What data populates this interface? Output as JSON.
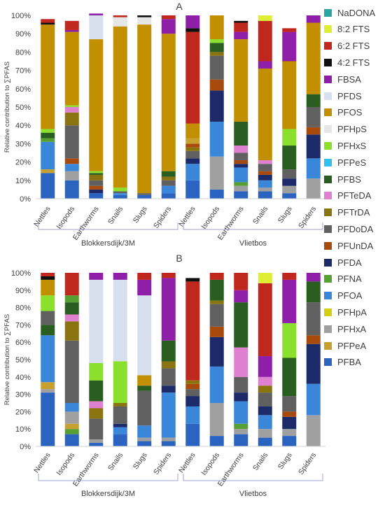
{
  "legend": [
    {
      "name": "NaDONA",
      "color": "#2aa6a0"
    },
    {
      "name": "8:2 FTS",
      "color": "#ddee33"
    },
    {
      "name": "6:2 FTS",
      "color": "#c0281e"
    },
    {
      "name": "4:2 FTS",
      "color": "#101010"
    },
    {
      "name": "FBSA",
      "color": "#8f1ea8"
    },
    {
      "name": "PFDS",
      "color": "#d8e0f0"
    },
    {
      "name": "PFOS",
      "color": "#c28f00"
    },
    {
      "name": "PFHpS",
      "color": "#e6e6e6"
    },
    {
      "name": "PFHxS",
      "color": "#8ae02c"
    },
    {
      "name": "PFPeS",
      "color": "#33c0ee"
    },
    {
      "name": "PFBS",
      "color": "#2a5e20"
    },
    {
      "name": "PFTeDA",
      "color": "#e080d0"
    },
    {
      "name": "PFTrDA",
      "color": "#8a7410"
    },
    {
      "name": "PFDoDA",
      "color": "#606060"
    },
    {
      "name": "PFUnDA",
      "color": "#a84a0c"
    },
    {
      "name": "PFDA",
      "color": "#1c2a6a"
    },
    {
      "name": "PFNA",
      "color": "#55a030"
    },
    {
      "name": "PFOA",
      "color": "#3a86d8"
    },
    {
      "name": "PFHpA",
      "color": "#d4d010"
    },
    {
      "name": "PFHxA",
      "color": "#a0a0a0"
    },
    {
      "name": "PFPeA",
      "color": "#c8a030"
    },
    {
      "name": "PFBA",
      "color": "#2a64c0"
    }
  ],
  "chart_data": [
    {
      "type": "bar",
      "stacked": true,
      "panel_label": "A",
      "ylabel": "Relative contribution to ∑PFAS",
      "yticks": [
        "0%",
        "10%",
        "20%",
        "30%",
        "40%",
        "50%",
        "60%",
        "70%",
        "80%",
        "90%",
        "100%"
      ],
      "ylim": [
        0,
        100
      ],
      "categories": [
        "Nettles",
        "Isopods",
        "Earthworms",
        "Snails",
        "Slugs",
        "Spiders",
        "Nettles",
        "Isopods",
        "Earthworms",
        "Snails",
        "Slugs",
        "Spiders"
      ],
      "groups": [
        {
          "label": "Blokkersdijk/3M",
          "start": 0,
          "end": 5
        },
        {
          "label": "Vlietbos",
          "start": 6,
          "end": 11
        }
      ],
      "stacks": [
        [
          [
            "PFBA",
            14
          ],
          [
            "PFPeA",
            2
          ],
          [
            "PFOA",
            15
          ],
          [
            "PFNA",
            2
          ],
          [
            "PFBS",
            3
          ],
          [
            "PFHxS",
            2
          ],
          [
            "PFOS",
            57
          ],
          [
            "4:2 FTS",
            1
          ],
          [
            "6:2 FTS",
            2
          ]
        ],
        [
          [
            "PFBA",
            10
          ],
          [
            "PFHxA",
            5
          ],
          [
            "PFOA",
            4
          ],
          [
            "PFUnDA",
            3
          ],
          [
            "PFDoDA",
            18
          ],
          [
            "PFTrDA",
            7
          ],
          [
            "PFTeDA",
            3
          ],
          [
            "PFHxS",
            1
          ],
          [
            "PFOS",
            40
          ],
          [
            "FBSA",
            1
          ],
          [
            "6:2 FTS",
            5
          ]
        ],
        [
          [
            "PFBA",
            3
          ],
          [
            "PFDA",
            2
          ],
          [
            "PFUnDA",
            2
          ],
          [
            "PFDoDA",
            3
          ],
          [
            "PFTrDA",
            3
          ],
          [
            "PFBS",
            1
          ],
          [
            "PFHxS",
            1
          ],
          [
            "PFOS",
            72
          ],
          [
            "PFDS",
            13
          ],
          [
            "FBSA",
            1
          ]
        ],
        [
          [
            "PFBA",
            2
          ],
          [
            "PFOA",
            1
          ],
          [
            "PFDoDA",
            1
          ],
          [
            "PFHxS",
            2
          ],
          [
            "PFOS",
            88
          ],
          [
            "PFHpS",
            5
          ],
          [
            "6:2 FTS",
            1
          ]
        ],
        [
          [
            "PFBA",
            2
          ],
          [
            "PFDoDA",
            1
          ],
          [
            "PFOS",
            92
          ],
          [
            "PFHpS",
            4
          ],
          [
            "4:2 FTS",
            1
          ]
        ],
        [
          [
            "PFBA",
            3
          ],
          [
            "PFOA",
            4
          ],
          [
            "PFDoDA",
            3
          ],
          [
            "PFTrDA",
            2
          ],
          [
            "PFBS",
            3
          ],
          [
            "PFOS",
            75
          ],
          [
            "FBSA",
            8
          ],
          [
            "6:2 FTS",
            2
          ]
        ],
        [
          [
            "PFBA",
            10
          ],
          [
            "PFOA",
            9
          ],
          [
            "PFDA",
            3
          ],
          [
            "PFDoDA",
            4
          ],
          [
            "PFTrDA",
            2
          ],
          [
            "PFUnDA",
            2
          ],
          [
            "PFPeA",
            3
          ],
          [
            "PFOS",
            8
          ],
          [
            "6:2 FTS",
            50
          ],
          [
            "4:2 FTS",
            2
          ],
          [
            "FBSA",
            7
          ]
        ],
        [
          [
            "PFBA",
            5
          ],
          [
            "PFHxA",
            18
          ],
          [
            "PFOA",
            19
          ],
          [
            "PFDA",
            17
          ],
          [
            "PFUnDA",
            6
          ],
          [
            "PFDoDA",
            13
          ],
          [
            "PFTrDA",
            2
          ],
          [
            "PFBS",
            5
          ],
          [
            "PFHxS",
            2
          ],
          [
            "PFOS",
            13
          ]
        ],
        [
          [
            "PFBA",
            4
          ],
          [
            "PFHxA",
            3
          ],
          [
            "PFNA",
            2
          ],
          [
            "PFOA",
            8
          ],
          [
            "PFDA",
            2
          ],
          [
            "PFUnDA",
            2
          ],
          [
            "PFDoDA",
            4
          ],
          [
            "PFTeDA",
            4
          ],
          [
            "PFBS",
            13
          ],
          [
            "PFOS",
            45
          ],
          [
            "FBSA",
            4
          ],
          [
            "6:2 FTS",
            5
          ],
          [
            "4:2 FTS",
            1
          ]
        ],
        [
          [
            "PFBA",
            4
          ],
          [
            "PFHxA",
            2
          ],
          [
            "PFOA",
            4
          ],
          [
            "PFDA",
            3
          ],
          [
            "PFUnDA",
            2
          ],
          [
            "PFDoDA",
            4
          ],
          [
            "PFTeDA",
            2
          ],
          [
            "PFOS",
            50
          ],
          [
            "FBSA",
            4
          ],
          [
            "6:2 FTS",
            22
          ],
          [
            "8:2 FTS",
            3
          ]
        ],
        [
          [
            "PFBA",
            3
          ],
          [
            "PFHxA",
            4
          ],
          [
            "PFDA",
            4
          ],
          [
            "PFDoDA",
            5
          ],
          [
            "PFBS",
            13
          ],
          [
            "PFHxS",
            9
          ],
          [
            "PFOS",
            37
          ],
          [
            "FBSA",
            16
          ],
          [
            "6:2 FTS",
            2
          ]
        ],
        [
          [
            "PFHxA",
            11
          ],
          [
            "PFOA",
            11
          ],
          [
            "PFDA",
            13
          ],
          [
            "PFUnDA",
            4
          ],
          [
            "PFDoDA",
            11
          ],
          [
            "PFBS",
            7
          ],
          [
            "PFOS",
            39
          ],
          [
            "FBSA",
            4
          ]
        ]
      ]
    },
    {
      "type": "bar",
      "stacked": true,
      "panel_label": "B",
      "ylabel": "Relative contribution to ∑PFAS",
      "yticks": [
        "0%",
        "10%",
        "20%",
        "30%",
        "40%",
        "50%",
        "60%",
        "70%",
        "80%",
        "90%",
        "100%"
      ],
      "ylim": [
        0,
        100
      ],
      "categories": [
        "Nettles",
        "Isopods",
        "Earthworms",
        "Snails",
        "Slugs",
        "Spiders",
        "Nettles",
        "Isopods",
        "Earthworms",
        "Snails",
        "Slugs",
        "Spiders"
      ],
      "groups": [
        {
          "label": "Blokkersdijk/3M",
          "start": 0,
          "end": 5
        },
        {
          "label": "Vlietbos",
          "start": 6,
          "end": 11
        }
      ],
      "stacks": [
        [
          [
            "PFBA",
            31
          ],
          [
            "PFHxA",
            2
          ],
          [
            "PFPeA",
            4
          ],
          [
            "PFOA",
            27
          ],
          [
            "PFBS",
            6
          ],
          [
            "PFDoDA",
            8
          ],
          [
            "PFHxS",
            9
          ],
          [
            "PFOS",
            9
          ],
          [
            "4:2 FTS",
            2
          ],
          [
            "6:2 FTS",
            2
          ]
        ],
        [
          [
            "PFBA",
            7
          ],
          [
            "PFNA",
            3
          ],
          [
            "PFPeA",
            3
          ],
          [
            "PFHxA",
            7
          ],
          [
            "PFOA",
            5
          ],
          [
            "PFDoDA",
            36
          ],
          [
            "PFTrDA",
            11
          ],
          [
            "PFTeDA",
            4
          ],
          [
            "PFBS",
            7
          ],
          [
            "PFNA",
            4
          ],
          [
            "6:2 FTS",
            13
          ]
        ],
        [
          [
            "PFBA",
            2
          ],
          [
            "PFHxA",
            2
          ],
          [
            "PFDoDA",
            12
          ],
          [
            "PFTrDA",
            6
          ],
          [
            "PFTeDA",
            4
          ],
          [
            "PFBS",
            12
          ],
          [
            "PFHxS",
            10
          ],
          [
            "PFDS",
            48
          ],
          [
            "FBSA",
            4
          ]
        ],
        [
          [
            "PFBA",
            7
          ],
          [
            "PFOA",
            4
          ],
          [
            "PFDA",
            2
          ],
          [
            "PFDoDA",
            10
          ],
          [
            "PFTrDA",
            2
          ],
          [
            "PFHxS",
            24
          ],
          [
            "PFDS",
            47
          ],
          [
            "FBSA",
            4
          ]
        ],
        [
          [
            "PFBA",
            3
          ],
          [
            "PFHxA",
            2
          ],
          [
            "PFOA",
            7
          ],
          [
            "PFDoDA",
            20
          ],
          [
            "PFBS",
            3
          ],
          [
            "PFOS",
            6
          ],
          [
            "PFDS",
            46
          ],
          [
            "FBSA",
            9
          ],
          [
            "6:2 FTS",
            4
          ]
        ],
        [
          [
            "PFBA",
            3
          ],
          [
            "PFHxA",
            2
          ],
          [
            "PFOA",
            26
          ],
          [
            "PFDA",
            4
          ],
          [
            "PFDoDA",
            10
          ],
          [
            "PFTrDA",
            4
          ],
          [
            "PFBS",
            12
          ],
          [
            "FBSA",
            36
          ],
          [
            "6:2 FTS",
            3
          ]
        ],
        [
          [
            "PFBA",
            13
          ],
          [
            "PFOA",
            10
          ],
          [
            "PFDA",
            6
          ],
          [
            "PFDoDA",
            4
          ],
          [
            "PFUnDA",
            3
          ],
          [
            "PFTrDA",
            2
          ],
          [
            "6:2 FTS",
            57
          ],
          [
            "4:2 FTS",
            2
          ]
        ],
        [
          [
            "PFBA",
            6
          ],
          [
            "PFHxA",
            19
          ],
          [
            "PFOA",
            21
          ],
          [
            "PFDA",
            17
          ],
          [
            "PFUnDA",
            6
          ],
          [
            "PFDoDA",
            13
          ],
          [
            "PFTrDA",
            2
          ],
          [
            "PFBS",
            12
          ],
          [
            "6:2 FTS",
            4
          ]
        ],
        [
          [
            "PFBA",
            7
          ],
          [
            "PFHxA",
            3
          ],
          [
            "PFNA",
            3
          ],
          [
            "PFOA",
            13
          ],
          [
            "PFDA",
            5
          ],
          [
            "PFDoDA",
            9
          ],
          [
            "PFTeDA",
            17
          ],
          [
            "PFBS",
            26
          ],
          [
            "FBSA",
            7
          ],
          [
            "6:2 FTS",
            10
          ]
        ],
        [
          [
            "PFBA",
            5
          ],
          [
            "PFHxA",
            5
          ],
          [
            "PFOA",
            8
          ],
          [
            "PFDA",
            5
          ],
          [
            "PFDoDA",
            8
          ],
          [
            "PFTrDA",
            4
          ],
          [
            "PFTeDA",
            5
          ],
          [
            "FBSA",
            12
          ],
          [
            "6:2 FTS",
            42
          ],
          [
            "8:2 FTS",
            6
          ]
        ],
        [
          [
            "PFBA",
            6
          ],
          [
            "PFHxA",
            4
          ],
          [
            "PFDA",
            7
          ],
          [
            "PFUnDA",
            3
          ],
          [
            "PFDoDA",
            9
          ],
          [
            "PFBS",
            22
          ],
          [
            "PFHxS",
            20
          ],
          [
            "FBSA",
            25
          ],
          [
            "6:2 FTS",
            4
          ]
        ],
        [
          [
            "PFHxA",
            18
          ],
          [
            "PFOA",
            18
          ],
          [
            "PFDA",
            23
          ],
          [
            "PFUnDA",
            5
          ],
          [
            "PFDoDA",
            19
          ],
          [
            "PFBS",
            12
          ],
          [
            "FBSA",
            5
          ]
        ]
      ]
    }
  ]
}
